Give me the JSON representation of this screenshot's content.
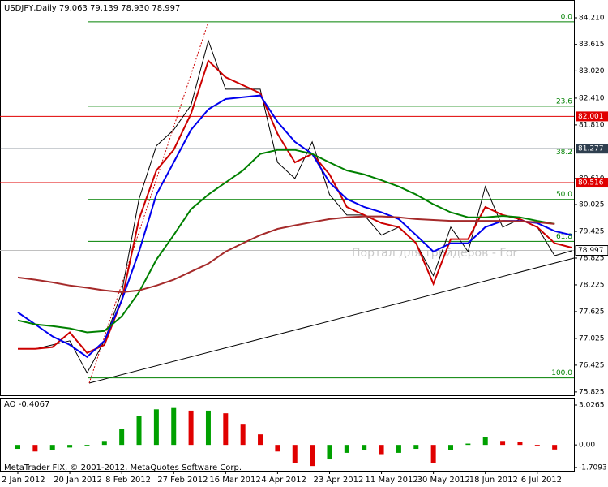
{
  "chart_data": [
    {
      "type": "line",
      "title": "USDJPY,Daily  79.063 79.139 78.930 78.997",
      "watermark": "Портал для трейдеров - For",
      "categories": [
        "2 Jan 2012",
        null,
        null,
        "20 Jan 2012",
        null,
        null,
        "8 Feb 2012",
        null,
        null,
        "27 Feb 2012",
        null,
        null,
        "16 Mar 2012",
        null,
        null,
        "4 Apr 2012",
        null,
        null,
        "23 Apr 2012",
        null,
        null,
        "11 May 2012",
        null,
        null,
        "30 May 2012",
        null,
        null,
        "18 Jun 2012",
        null,
        null,
        "6 Jul 2012",
        null,
        null
      ],
      "series": [
        {
          "color": "#000000",
          "values": [
            76.79,
            76.79,
            76.88,
            76.97,
            76.25,
            76.97,
            78.06,
            80.15,
            81.34,
            81.7,
            82.25,
            83.7,
            82.61,
            82.61,
            82.61,
            80.97,
            80.61,
            81.43,
            80.25,
            79.79,
            79.79,
            79.34,
            79.52,
            79.16,
            78.43,
            79.52,
            78.97,
            80.43,
            79.52,
            79.7,
            79.52,
            78.88,
            78.99
          ]
        },
        {
          "color": "#cc0000",
          "values": [
            76.79,
            76.79,
            76.83,
            77.16,
            76.7,
            76.88,
            77.88,
            79.7,
            80.79,
            81.25,
            82.06,
            83.25,
            82.88,
            82.7,
            82.52,
            81.61,
            80.97,
            81.16,
            80.7,
            79.97,
            79.79,
            79.61,
            79.52,
            79.16,
            78.25,
            79.25,
            79.25,
            79.97,
            79.79,
            79.7,
            79.52,
            79.16,
            79.06
          ]
        },
        {
          "color": "#0000ee",
          "values": [
            77.61,
            77.34,
            77.07,
            76.88,
            76.61,
            76.97,
            77.88,
            78.97,
            80.25,
            80.97,
            81.7,
            82.16,
            82.39,
            82.43,
            82.47,
            81.88,
            81.43,
            81.16,
            80.52,
            80.15,
            79.97,
            79.85,
            79.7,
            79.34,
            78.97,
            79.16,
            79.16,
            79.52,
            79.66,
            79.66,
            79.61,
            79.43,
            79.34
          ]
        },
        {
          "color": "#008000",
          "values": [
            77.43,
            77.34,
            77.3,
            77.25,
            77.16,
            77.19,
            77.52,
            78.06,
            78.79,
            79.34,
            79.92,
            80.25,
            80.52,
            80.79,
            81.16,
            81.25,
            81.25,
            81.16,
            80.97,
            80.79,
            80.7,
            80.57,
            80.43,
            80.25,
            80.03,
            79.85,
            79.74,
            79.74,
            79.77,
            79.74,
            79.66,
            79.59,
            null
          ]
        },
        {
          "color": "#a52a2a",
          "values": [
            78.39,
            78.34,
            78.28,
            78.21,
            78.16,
            78.1,
            78.06,
            78.1,
            78.21,
            78.34,
            78.52,
            78.7,
            78.97,
            79.16,
            79.34,
            79.48,
            79.56,
            79.63,
            79.7,
            79.74,
            79.76,
            79.76,
            79.74,
            79.7,
            79.68,
            79.66,
            79.66,
            79.66,
            79.66,
            79.65,
            79.63,
            79.59,
            null
          ]
        }
      ],
      "ylim": [
        75.75,
        84.61
      ],
      "yticks": [
        {
          "value": 84.21,
          "label": "84.210"
        },
        {
          "value": 83.615,
          "label": "83.615"
        },
        {
          "value": 83.02,
          "label": "83.020"
        },
        {
          "value": 82.41,
          "label": "82.410"
        },
        {
          "value": 81.81,
          "label": "81.810"
        },
        {
          "value": 80.61,
          "label": "80.610"
        },
        {
          "value": 80.025,
          "label": "80.025"
        },
        {
          "value": 79.425,
          "label": "79.425"
        },
        {
          "value": 78.825,
          "label": "78.825"
        },
        {
          "value": 78.225,
          "label": "78.225"
        },
        {
          "value": 77.625,
          "label": "77.625"
        },
        {
          "value": 77.025,
          "label": "77.025"
        },
        {
          "value": 76.425,
          "label": "76.425"
        },
        {
          "value": 75.825,
          "label": "75.825"
        }
      ],
      "levels": [
        {
          "value": 82.001,
          "color": "#e00000"
        },
        {
          "value": 81.277,
          "color": "#2f3f4f"
        },
        {
          "value": 80.516,
          "color": "#e00000"
        },
        {
          "value": 78.997,
          "color": "#c0c0c0"
        }
      ],
      "fib_levels": [
        {
          "value": 84.12,
          "label": "0.0"
        },
        {
          "value": 82.23,
          "label": "23.6"
        },
        {
          "value": 81.09,
          "label": "38.2"
        },
        {
          "value": 80.14,
          "label": "50.0"
        },
        {
          "value": 79.2,
          "label": "61.8"
        },
        {
          "value": 76.14,
          "label": "100.0"
        }
      ],
      "fib_color": "#008000"
    },
    {
      "type": "bar",
      "title": "AO -0.4067",
      "note": "MetaTrader FIX, © 2001-2012, MetaQuotes Software Corp.",
      "values": [
        -0.3,
        -0.5,
        -0.4,
        -0.2,
        -0.1,
        0.3,
        1.2,
        2.2,
        2.7,
        2.8,
        2.6,
        2.6,
        2.4,
        1.6,
        0.8,
        -0.5,
        -1.4,
        -1.6,
        -1.1,
        -0.6,
        -0.4,
        -0.7,
        -0.6,
        -0.3,
        -1.4,
        -0.4,
        0.1,
        0.6,
        0.3,
        0.2,
        -0.1,
        -0.35,
        null
      ],
      "up_color": "#00a000",
      "down_color": "#e00000",
      "ylim": [
        -1.96,
        3.58
      ],
      "yticks": [
        3.0265,
        {
          "value": 0,
          "label": "0.00"
        },
        -1.7093
      ]
    }
  ]
}
